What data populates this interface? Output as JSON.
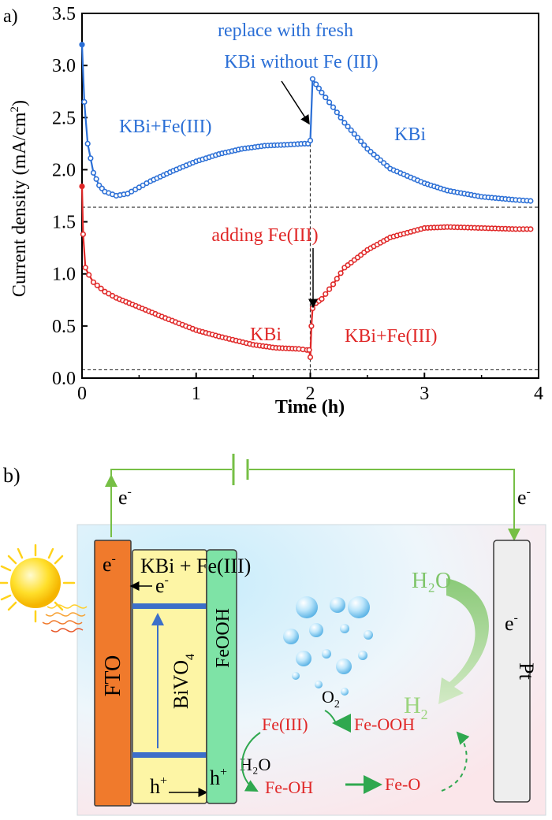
{
  "panel_a": {
    "label": "a)",
    "chart_data": {
      "type": "line",
      "title": "",
      "xlabel": "Time (h)",
      "ylabel_main": "Current density (mA/cm",
      "ylabel_sup": "2",
      "ylabel_end": ")",
      "xlim": [
        0,
        4
      ],
      "ylim": [
        0,
        3.5
      ],
      "xticks": [
        0,
        1,
        2,
        3,
        4
      ],
      "xtick_labels": [
        "0",
        "1",
        "2",
        "3",
        "4"
      ],
      "yticks": [
        0,
        0.5,
        1.0,
        1.5,
        2.0,
        2.5,
        3.0,
        3.5
      ],
      "ytick_labels": [
        "0.0",
        "0.5",
        "1.0",
        "1.5",
        "2.0",
        "2.5",
        "3.0",
        "3.5"
      ],
      "reference_lines": [
        1.64,
        0.08
      ],
      "switch_time": 2.0,
      "series": [
        {
          "name": "blue",
          "color": "#2b6fd6",
          "x": [
            0.0,
            0.02,
            0.05,
            0.1,
            0.15,
            0.2,
            0.3,
            0.4,
            0.5,
            0.6,
            0.8,
            1.0,
            1.2,
            1.4,
            1.6,
            1.8,
            1.95,
            1.98,
            2.0,
            2.02,
            2.05,
            2.1,
            2.2,
            2.3,
            2.5,
            2.7,
            3.0,
            3.2,
            3.5,
            3.8,
            3.93
          ],
          "y": [
            3.2,
            2.65,
            2.25,
            1.97,
            1.85,
            1.79,
            1.75,
            1.77,
            1.83,
            1.89,
            1.99,
            2.08,
            2.15,
            2.2,
            2.23,
            2.24,
            2.25,
            2.25,
            2.28,
            2.87,
            2.82,
            2.74,
            2.6,
            2.45,
            2.2,
            2.01,
            1.87,
            1.8,
            1.74,
            1.71,
            1.7
          ]
        },
        {
          "name": "red",
          "color": "#e02828",
          "x": [
            0.0,
            0.01,
            0.03,
            0.06,
            0.1,
            0.2,
            0.3,
            0.5,
            0.7,
            1.0,
            1.2,
            1.5,
            1.7,
            1.9,
            1.97,
            1.99,
            2.0,
            2.01,
            2.02,
            2.05,
            2.1,
            2.2,
            2.3,
            2.5,
            2.7,
            3.0,
            3.2,
            3.5,
            3.8,
            3.93
          ],
          "y": [
            1.84,
            1.38,
            1.06,
            0.99,
            0.92,
            0.83,
            0.77,
            0.68,
            0.59,
            0.46,
            0.4,
            0.32,
            0.29,
            0.28,
            0.27,
            0.27,
            0.2,
            0.5,
            0.67,
            0.72,
            0.76,
            0.9,
            1.06,
            1.23,
            1.35,
            1.44,
            1.45,
            1.44,
            1.43,
            1.43
          ]
        }
      ],
      "annotations": {
        "blue_left": "KBi+Fe(III)",
        "blue_right": "KBi",
        "replace_line1": "replace with fresh",
        "replace_line2": "KBi without Fe (III)",
        "adding": "adding Fe(III)",
        "red_left": "KBi",
        "red_right": "KBi+Fe(III)"
      }
    }
  },
  "panel_b": {
    "label": "b)",
    "electron_left": "e",
    "electron_right": "e",
    "minus": "-",
    "electrolyte": "KBi + Fe(III)",
    "fto": "FTO",
    "fto_electron": "e",
    "bivo4_main": "BiVO",
    "bivo4_sub": "4",
    "bivo4_electron": "e",
    "hole": "h",
    "hole_sup": "+",
    "feooh": "FeOOH",
    "feooh_hole": "h",
    "pt": "Pt",
    "pt_electron": "e",
    "water_top": "H₂O",
    "h2": "H",
    "h2_sub": "2",
    "o2": "O",
    "o2_sub": "2",
    "fe3": "Fe(III)",
    "feooh_cycle": "Fe-OOH",
    "h2o_cycle": "H₂O",
    "feoh": "Fe-OH",
    "feo": "Fe-O",
    "colors": {
      "fto": "#f07a2c",
      "bivo4": "#fdf5a5",
      "feooh": "#7ee3a6",
      "pt": "#eeeeee",
      "wire": "#76bf45",
      "band": "#3c6fc9",
      "cycle_text": "#e02828",
      "cycle_arrow": "#2fa84f"
    }
  }
}
